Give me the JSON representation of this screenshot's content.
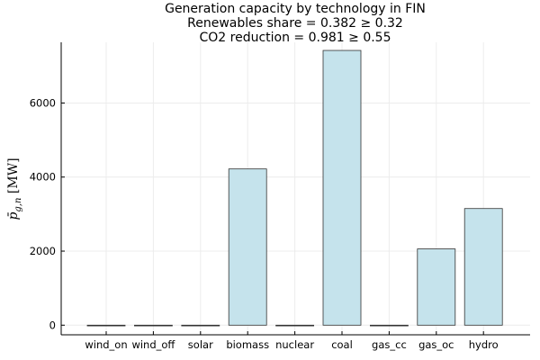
{
  "chart_data": {
    "type": "bar",
    "title_lines": [
      "Generation capacity by technology in FIN",
      "Renewables share = 0.382 ≥ 0.32",
      "CO2 reduction = 0.981 ≥ 0.55"
    ],
    "xlabel": "",
    "ylabel": "p̄_{g,n} [MW]",
    "categories": [
      "wind_on",
      "wind_off",
      "solar",
      "biomass",
      "nuclear",
      "coal",
      "gas_cc",
      "gas_oc",
      "hydro"
    ],
    "values": [
      0,
      0,
      0,
      4220,
      0,
      7420,
      0,
      2060,
      3150
    ],
    "ylim": [
      -260,
      7640
    ],
    "yticks": [
      0,
      2000,
      4000,
      6000
    ],
    "grid": true,
    "legend": "none",
    "colors": {
      "bar_fill": "#c5e3ec",
      "bar_edge": "#333333",
      "grid": "#ececec",
      "axis": "#000000"
    }
  }
}
